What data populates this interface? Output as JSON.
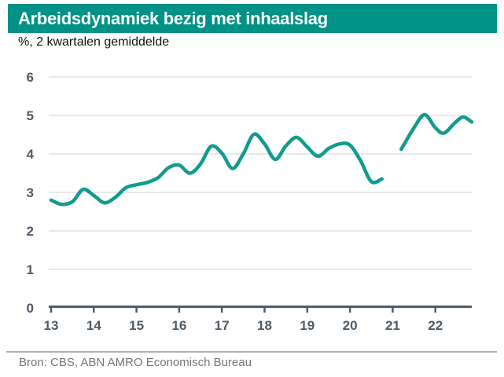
{
  "header": {
    "title": "Arbeidsdynamiek bezig met inhaalslag"
  },
  "subtitle": "%, 2 kwartalen gemiddelde",
  "footer": {
    "source": "Bron: CBS, ABN AMRO Economisch Bureau"
  },
  "colors": {
    "header_bar": "#009286",
    "header_text": "#ffffff",
    "subtitle_text": "#111111",
    "divider": "#b3b3b3",
    "source_text": "#767676"
  },
  "chart_data": {
    "type": "line",
    "title": "Arbeidsdynamiek bezig met inhaalslag",
    "subtitle": "%, 2 kwartalen gemiddelde",
    "xlabel": "",
    "ylabel": "%",
    "xlim": [
      12.95,
      22.95
    ],
    "ylim": [
      0,
      6
    ],
    "grid": "horizontal-only",
    "legend": "none",
    "line_color": "#0f9c8e",
    "axis_color": "#4d5c68",
    "grid_color": "#d9d9d9",
    "x_tick_values": [
      13,
      14,
      15,
      16,
      17,
      18,
      19,
      20,
      21,
      22
    ],
    "x_tick_labels": [
      "13",
      "14",
      "15",
      "16",
      "17",
      "18",
      "19",
      "20",
      "21",
      "22"
    ],
    "y_tick_values": [
      0,
      1,
      2,
      3,
      4,
      5,
      6
    ],
    "y_tick_labels": [
      "0",
      "1",
      "2",
      "3",
      "4",
      "5",
      "6"
    ],
    "series": [
      {
        "name": "segment-2013-2020",
        "points": [
          [
            13.0,
            2.8
          ],
          [
            13.25,
            2.69
          ],
          [
            13.5,
            2.76
          ],
          [
            13.75,
            3.08
          ],
          [
            14.0,
            2.92
          ],
          [
            14.25,
            2.73
          ],
          [
            14.5,
            2.87
          ],
          [
            14.75,
            3.12
          ],
          [
            15.0,
            3.2
          ],
          [
            15.25,
            3.26
          ],
          [
            15.5,
            3.38
          ],
          [
            15.75,
            3.64
          ],
          [
            16.0,
            3.71
          ],
          [
            16.25,
            3.5
          ],
          [
            16.5,
            3.74
          ],
          [
            16.75,
            4.2
          ],
          [
            17.0,
            4.02
          ],
          [
            17.25,
            3.62
          ],
          [
            17.5,
            4.0
          ],
          [
            17.75,
            4.51
          ],
          [
            18.0,
            4.26
          ],
          [
            18.25,
            3.86
          ],
          [
            18.5,
            4.21
          ],
          [
            18.75,
            4.43
          ],
          [
            19.0,
            4.18
          ],
          [
            19.25,
            3.94
          ],
          [
            19.5,
            4.14
          ],
          [
            19.75,
            4.26
          ],
          [
            20.0,
            4.23
          ],
          [
            20.25,
            3.82
          ],
          [
            20.5,
            3.28
          ],
          [
            20.75,
            3.35
          ]
        ]
      },
      {
        "name": "segment-2021-2022",
        "points": [
          [
            21.2,
            4.12
          ],
          [
            21.5,
            4.68
          ],
          [
            21.75,
            5.02
          ],
          [
            22.0,
            4.68
          ],
          [
            22.2,
            4.54
          ],
          [
            22.45,
            4.8
          ],
          [
            22.65,
            4.96
          ],
          [
            22.85,
            4.83
          ]
        ]
      }
    ]
  }
}
